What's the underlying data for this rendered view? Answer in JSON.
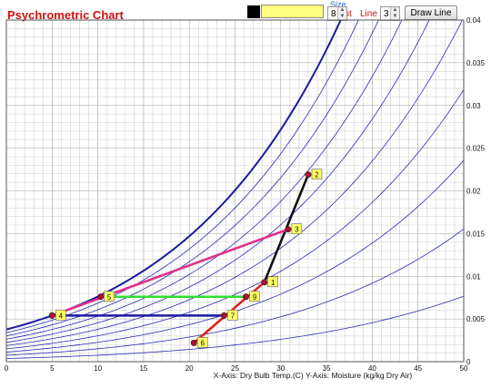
{
  "app": {
    "title": "Psychrometric Chart"
  },
  "toolbar": {
    "size_label": "Size",
    "point_label": "Point",
    "point_value": "8",
    "line_label": "Line",
    "line_value": "3",
    "draw_button": "Draw Line"
  },
  "colors": {
    "saturation": "#1a1aa0",
    "rh_lines": "#2a2ab8",
    "grid": "#b4b4b4",
    "label_bg": "#ffff66"
  },
  "chart_data": {
    "type": "line",
    "title": "Psychrometric Chart",
    "xlabel": "X-Axis: Dry Bulb Temp.(C)  Y-Axis: Moisture (kg/kg Dry Air)",
    "xlim": [
      0,
      50
    ],
    "ylim": [
      0,
      0.04
    ],
    "x_ticks": [
      "0",
      "5",
      "10",
      "15",
      "20",
      "25",
      "30",
      "35",
      "40",
      "45",
      "50"
    ],
    "y_ticks": [
      "0",
      "0.005",
      "0.01",
      "0.015",
      "0.02",
      "0.025",
      "0.03",
      "0.035",
      "0.04"
    ],
    "grid": true,
    "rh_curves": [
      1.0,
      0.9,
      0.8,
      0.7,
      0.6,
      0.5,
      0.4,
      0.3,
      0.2,
      0.1
    ],
    "points": [
      {
        "label": "1",
        "x": 28.2,
        "y": 0.0093
      },
      {
        "label": "2",
        "x": 33.0,
        "y": 0.0219
      },
      {
        "label": "3",
        "x": 30.8,
        "y": 0.0155
      },
      {
        "label": "4",
        "x": 5.0,
        "y": 0.0054
      },
      {
        "label": "5",
        "x": 10.3,
        "y": 0.0076
      },
      {
        "label": "6",
        "x": 20.5,
        "y": 0.0022
      },
      {
        "label": "7",
        "x": 23.8,
        "y": 0.0054
      },
      {
        "label": "9",
        "x": 26.2,
        "y": 0.0076
      }
    ],
    "segments": [
      {
        "from": "6",
        "to": "1",
        "color": "#e02020"
      },
      {
        "from": "1",
        "to": "2",
        "color": "#101010"
      },
      {
        "from": "4",
        "to": "3",
        "color": "#e0308a"
      },
      {
        "from": "5",
        "to": "9",
        "color": "#30e030"
      },
      {
        "from": "4",
        "to": "7",
        "color": "#1a1aa0"
      }
    ]
  }
}
